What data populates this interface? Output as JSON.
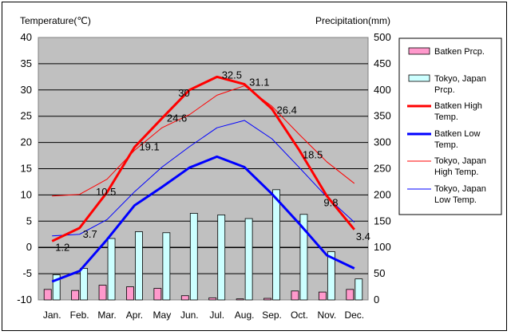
{
  "chart_data": {
    "type": "bar",
    "categories": [
      "Jan.",
      "Feb.",
      "Mar.",
      "Apr.",
      "May",
      "Jun.",
      "Jul.",
      "Aug.",
      "Sep.",
      "Oct.",
      "Nov.",
      "Dec."
    ],
    "ylabel_left": "Temperature(℃)",
    "ylabel_right": "Precipitation(mm)",
    "ylim_left": [
      -10,
      40
    ],
    "ylim_right": [
      0,
      500
    ],
    "yticks_left": [
      -10,
      -5,
      0,
      5,
      10,
      15,
      20,
      25,
      30,
      35,
      40
    ],
    "yticks_right": [
      0,
      50,
      100,
      150,
      200,
      250,
      300,
      350,
      400,
      450,
      500
    ],
    "grid": true,
    "legend_position": "right",
    "bar_series": [
      {
        "name": "Batken Prcp.",
        "color": "#ff99cc",
        "values": [
          20,
          18,
          28,
          25,
          22,
          8,
          4,
          2,
          3,
          17,
          15,
          20
        ]
      },
      {
        "name": "Tokyo, Japan Prcp.",
        "color": "#ccffff",
        "values": [
          48,
          60,
          117,
          130,
          128,
          165,
          162,
          155,
          210,
          163,
          92,
          40
        ]
      }
    ],
    "line_series": [
      {
        "name": "Batken High Temp.",
        "color": "#ff0000",
        "width": 3,
        "values": [
          1.2,
          3.7,
          10.5,
          19.1,
          24.6,
          30,
          32.5,
          31.1,
          26.4,
          18.5,
          9.8,
          3.4
        ],
        "labels": [
          "1.2",
          "3.7",
          "10.5",
          "19.1",
          "24.6",
          "30",
          "32.5",
          "31.1",
          "26.4",
          "18.5",
          "9.8",
          "3.4"
        ]
      },
      {
        "name": "Batken Low Temp.",
        "color": "#0000ff",
        "width": 3,
        "values": [
          -6.5,
          -4.5,
          1.5,
          8,
          11.5,
          15.2,
          17.3,
          15.3,
          10.2,
          4.5,
          -1.5,
          -4
        ]
      },
      {
        "name": "Tokyo, Japan High Temp.",
        "color": "#ff0000",
        "width": 1,
        "values": [
          9.8,
          10.1,
          13,
          18.5,
          22.8,
          25.3,
          29,
          30.8,
          26.9,
          21.5,
          16.3,
          12.2
        ]
      },
      {
        "name": "Tokyo, Japan Low Temp.",
        "color": "#0000ff",
        "width": 1,
        "values": [
          2.2,
          2.5,
          5.3,
          10.6,
          15.3,
          19.2,
          22.8,
          24.2,
          20.7,
          15.2,
          9.6,
          4.8
        ]
      }
    ]
  }
}
